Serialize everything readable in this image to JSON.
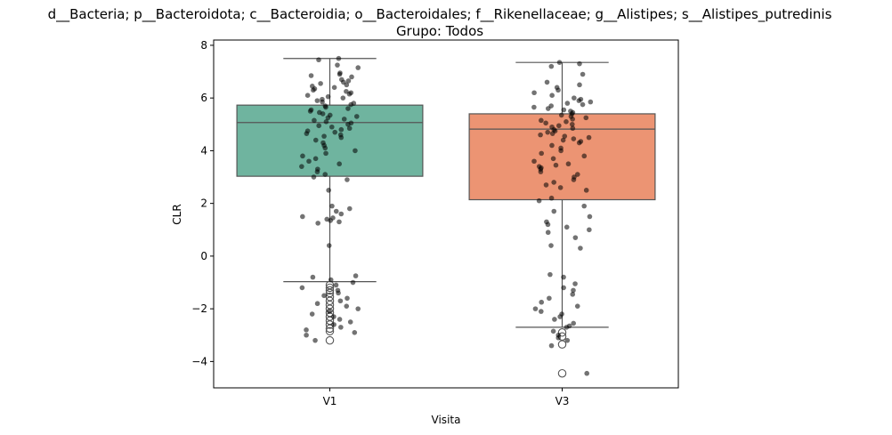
{
  "chart_data": {
    "type": "box",
    "title": "d__Bacteria; p__Bacteroidota; c__Bacteroidia; o__Bacteroidales; f__Rikenellaceae; g__Alistipes; s__Alistipes_putredinis",
    "subtitle": "Grupo: Todos",
    "xlabel": "Visita",
    "ylabel": "CLR",
    "categories": [
      "V1",
      "V3"
    ],
    "ylim": [
      -5.0,
      8.2
    ],
    "yticks": [
      -4,
      -2,
      0,
      2,
      4,
      6,
      8
    ],
    "ytick_labels": [
      "−4",
      "−2",
      "0",
      "2",
      "4",
      "6",
      "8"
    ],
    "grid": false,
    "boxes": [
      {
        "category": "V1",
        "color": "#6fb49f",
        "whisker_low": -0.97,
        "q1": 3.03,
        "median": 5.07,
        "q3": 5.73,
        "whisker_high": 7.5,
        "outliers": [
          -1.1,
          -1.2,
          -1.3,
          -1.4,
          -1.55,
          -1.7,
          -1.85,
          -2.0,
          -2.15,
          -2.3,
          -2.45,
          -2.6,
          -2.75,
          -2.85,
          -3.2
        ]
      },
      {
        "category": "V3",
        "color": "#ec9473",
        "whisker_low": -2.7,
        "q1": 2.14,
        "median": 4.82,
        "q3": 5.4,
        "whisker_high": 7.35,
        "outliers": [
          -2.9,
          -3.05,
          -3.35,
          -4.45
        ]
      }
    ],
    "points_color": "#000000",
    "points_opacity": 0.55,
    "points": [
      {
        "category": "V1",
        "values": [
          7.5,
          7.45,
          7.25,
          7.15,
          6.95,
          6.9,
          6.85,
          6.8,
          6.7,
          6.65,
          6.6,
          6.55,
          6.5,
          6.45,
          6.4,
          6.35,
          6.3,
          6.25,
          6.2,
          6.15,
          6.1,
          6.05,
          6.0,
          5.95,
          5.9,
          5.85,
          5.8,
          5.75,
          5.7,
          5.65,
          5.6,
          5.55,
          5.5,
          5.45,
          5.4,
          5.35,
          5.3,
          5.25,
          5.2,
          5.15,
          5.1,
          5.05,
          5.0,
          4.95,
          4.9,
          4.85,
          4.8,
          4.75,
          4.7,
          4.65,
          4.6,
          4.55,
          4.5,
          4.4,
          4.3,
          4.2,
          4.1,
          4.0,
          3.9,
          3.8,
          3.7,
          3.6,
          3.5,
          3.4,
          3.3,
          3.2,
          3.1,
          3.0,
          2.9,
          2.5,
          1.9,
          1.8,
          1.7,
          1.6,
          1.5,
          1.45,
          1.4,
          1.35,
          1.3,
          1.25,
          0.4,
          -0.75,
          -0.8,
          -0.9,
          -1.0,
          -1.1,
          -1.2,
          -1.3,
          -1.4,
          -1.5,
          -1.6,
          -1.7,
          -1.8,
          -1.9,
          -2.0,
          -2.1,
          -2.2,
          -2.3,
          -2.4,
          -2.5,
          -2.6,
          -2.7,
          -2.8,
          -2.9,
          -3.0,
          -3.2
        ]
      },
      {
        "category": "V3",
        "values": [
          7.35,
          7.3,
          7.2,
          6.9,
          6.6,
          6.5,
          6.4,
          6.3,
          6.2,
          6.1,
          6.0,
          5.95,
          5.9,
          5.85,
          5.8,
          5.75,
          5.7,
          5.65,
          5.6,
          5.55,
          5.5,
          5.45,
          5.4,
          5.35,
          5.3,
          5.25,
          5.2,
          5.15,
          5.1,
          5.05,
          5.0,
          4.95,
          4.9,
          4.85,
          4.8,
          4.75,
          4.7,
          4.65,
          4.6,
          4.55,
          4.5,
          4.45,
          4.4,
          4.35,
          4.3,
          4.2,
          4.1,
          4.0,
          3.9,
          3.8,
          3.7,
          3.6,
          3.5,
          3.45,
          3.4,
          3.35,
          3.3,
          3.2,
          3.1,
          3.0,
          2.9,
          2.8,
          2.7,
          2.6,
          2.5,
          2.2,
          2.1,
          1.9,
          1.7,
          1.5,
          1.3,
          1.2,
          1.1,
          1.0,
          0.9,
          0.7,
          0.4,
          0.3,
          -0.7,
          -0.8,
          -1.05,
          -1.2,
          -1.3,
          -1.45,
          -1.6,
          -1.75,
          -1.9,
          -2.0,
          -2.1,
          -2.2,
          -2.3,
          -2.4,
          -2.55,
          -2.65,
          -2.7,
          -2.85,
          -3.0,
          -3.1,
          -3.2,
          -3.4,
          -4.45
        ]
      }
    ]
  }
}
